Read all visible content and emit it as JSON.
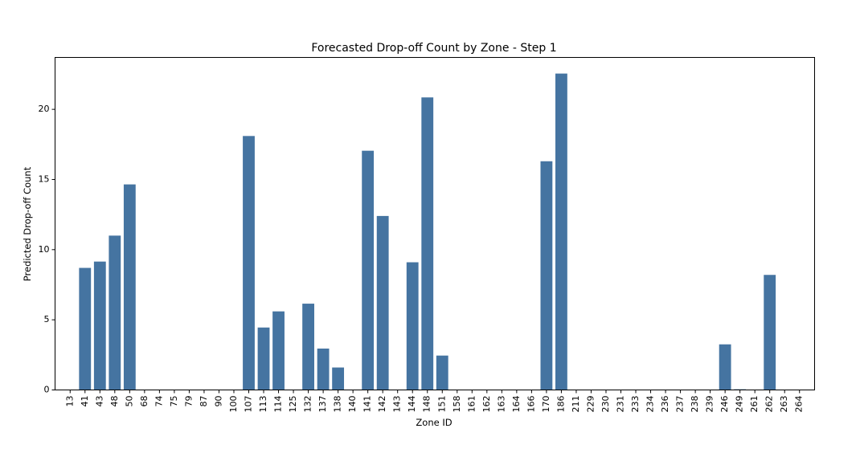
{
  "chart_data": {
    "type": "bar",
    "title": "Forecasted Drop-off Count by Zone - Step 1",
    "xlabel": "Zone ID",
    "ylabel": "Predicted Drop-off Count",
    "ylim": [
      0,
      23.7
    ],
    "yticks": [
      0,
      5,
      10,
      15,
      20
    ],
    "bar_color": "#4574a1",
    "categories": [
      "13",
      "41",
      "43",
      "48",
      "50",
      "68",
      "74",
      "75",
      "79",
      "87",
      "90",
      "100",
      "107",
      "113",
      "114",
      "125",
      "132",
      "137",
      "138",
      "140",
      "141",
      "142",
      "143",
      "144",
      "148",
      "151",
      "158",
      "161",
      "162",
      "163",
      "164",
      "166",
      "170",
      "186",
      "211",
      "229",
      "230",
      "231",
      "233",
      "234",
      "236",
      "237",
      "238",
      "239",
      "246",
      "249",
      "261",
      "262",
      "263",
      "264"
    ],
    "values": [
      0,
      8.7,
      9.15,
      11,
      14.65,
      0,
      0,
      0,
      0,
      0,
      0,
      0,
      18.1,
      4.45,
      5.6,
      0,
      6.15,
      2.95,
      1.6,
      0,
      17.05,
      12.4,
      0,
      9.1,
      20.85,
      2.45,
      0,
      0,
      0,
      0,
      0,
      0,
      16.3,
      22.55,
      0,
      0,
      0,
      0,
      0,
      0,
      0,
      0,
      0,
      0,
      3.25,
      0.05,
      0,
      8.2,
      0,
      0
    ]
  }
}
